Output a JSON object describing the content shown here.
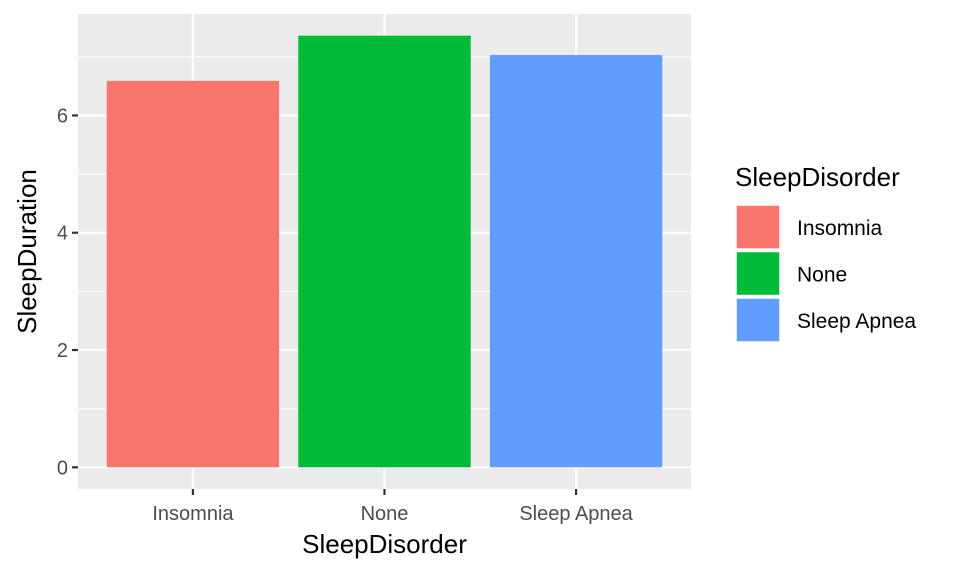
{
  "chart_data": {
    "type": "bar",
    "categories": [
      "Insomnia",
      "None",
      "Sleep Apnea"
    ],
    "values": [
      6.59,
      7.36,
      7.03
    ],
    "colors": [
      "#F8766D",
      "#00BA38",
      "#619CFF"
    ],
    "xlabel": "SleepDisorder",
    "ylabel": "SleepDuration",
    "ylim": [
      -0.37,
      7.73
    ],
    "yticks": [
      0,
      2,
      4,
      6
    ],
    "ytick_labels": [
      "0",
      "2",
      "4",
      "6"
    ],
    "grid": true,
    "panel_background": "#EBEBEB",
    "grid_color": "#FFFFFF",
    "legend": {
      "title": "SleepDisorder",
      "position": "right",
      "entries": [
        "Insomnia",
        "None",
        "Sleep Apnea"
      ]
    }
  }
}
